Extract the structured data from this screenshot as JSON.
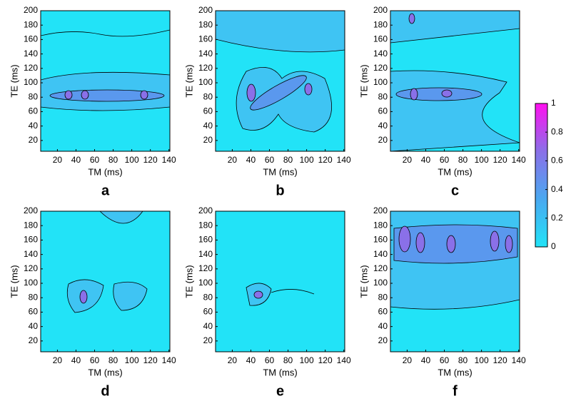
{
  "chart_data": [
    {
      "type": "contour",
      "label": "a",
      "xlabel": "TM (ms)",
      "ylabel": "TE (ms)",
      "xlim": [
        2,
        141
      ],
      "ylim": [
        5,
        200
      ],
      "xticks": [
        20,
        40,
        60,
        80,
        100,
        120,
        140
      ],
      "yticks": [
        20,
        40,
        60,
        80,
        100,
        120,
        140,
        160,
        180,
        200
      ],
      "background": "#22e3f7"
    },
    {
      "type": "contour",
      "label": "b",
      "xlabel": "TM (ms)",
      "ylabel": "TE (ms)",
      "xlim": [
        2,
        141
      ],
      "ylim": [
        5,
        200
      ],
      "xticks": [
        20,
        40,
        60,
        80,
        100,
        120,
        140
      ],
      "yticks": [
        20,
        40,
        60,
        80,
        100,
        120,
        140,
        160,
        180,
        200
      ],
      "background": "#22e3f7"
    },
    {
      "type": "contour",
      "label": "c",
      "xlabel": "TM (ms)",
      "ylabel": "TE (ms)",
      "xlim": [
        2,
        141
      ],
      "ylim": [
        5,
        200
      ],
      "xticks": [
        20,
        40,
        60,
        80,
        100,
        120,
        140
      ],
      "yticks": [
        20,
        40,
        60,
        80,
        100,
        120,
        140,
        160,
        180,
        200
      ],
      "background": "#22e3f7"
    },
    {
      "type": "contour",
      "label": "d",
      "xlabel": "TM (ms)",
      "ylabel": "TE (ms)",
      "xlim": [
        2,
        141
      ],
      "ylim": [
        5,
        200
      ],
      "xticks": [
        20,
        40,
        60,
        80,
        100,
        120,
        140
      ],
      "yticks": [
        20,
        40,
        60,
        80,
        100,
        120,
        140,
        160,
        180,
        200
      ],
      "background": "#22e3f7"
    },
    {
      "type": "contour",
      "label": "e",
      "xlabel": "TM (ms)",
      "ylabel": "TE (ms)",
      "xlim": [
        2,
        141
      ],
      "ylim": [
        5,
        200
      ],
      "xticks": [
        20,
        40,
        60,
        80,
        100,
        120,
        140
      ],
      "yticks": [
        20,
        40,
        60,
        80,
        100,
        120,
        140,
        160,
        180,
        200
      ],
      "background": "#22e3f7"
    },
    {
      "type": "contour",
      "label": "f",
      "xlabel": "TM (ms)",
      "ylabel": "TE (ms)",
      "xlim": [
        2,
        141
      ],
      "ylim": [
        5,
        200
      ],
      "xticks": [
        20,
        40,
        60,
        80,
        100,
        120,
        140
      ],
      "yticks": [
        20,
        40,
        60,
        80,
        100,
        120,
        140,
        160,
        180,
        200
      ],
      "background": "#22e3f7"
    }
  ],
  "colorbar": {
    "lim": [
      0,
      1
    ],
    "ticks": [
      0,
      0.2,
      0.4,
      0.6,
      0.8,
      1
    ],
    "colors": [
      "#22e3f7",
      "#4aa8f0",
      "#8a70e8",
      "#ff10f0"
    ]
  }
}
